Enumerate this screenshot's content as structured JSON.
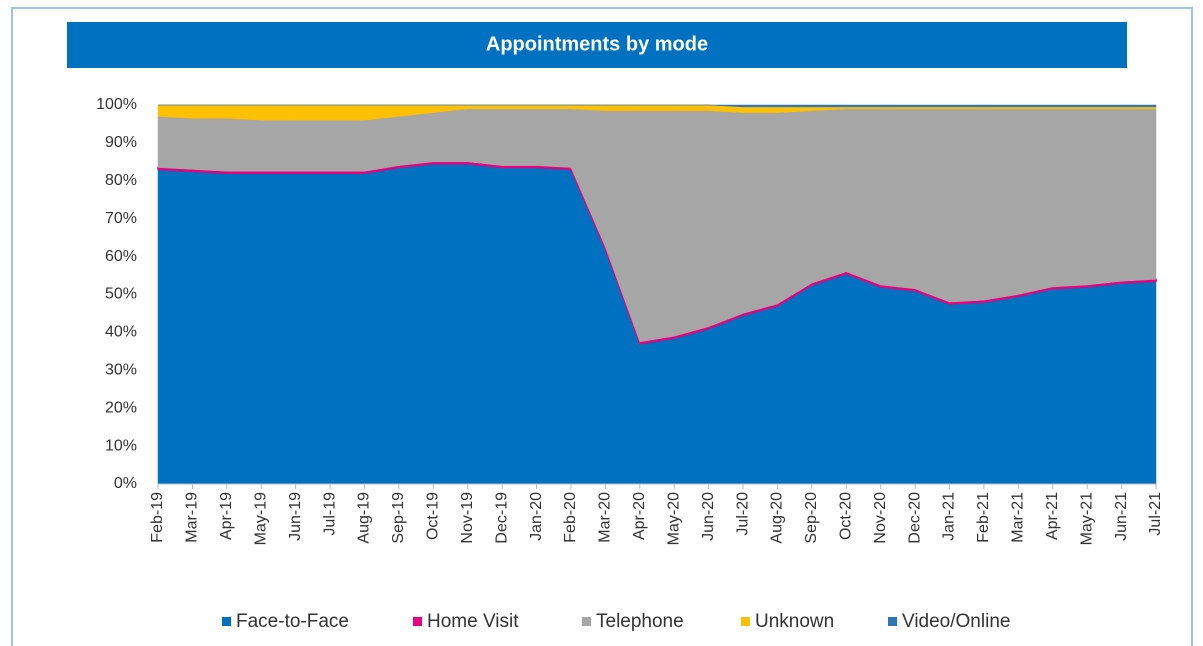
{
  "chart_data": {
    "type": "stacked_area",
    "title": "Appointments by mode",
    "categories": [
      "Feb-19",
      "Mar-19",
      "Apr-19",
      "May-19",
      "Jun-19",
      "Jul-19",
      "Aug-19",
      "Sep-19",
      "Oct-19",
      "Nov-19",
      "Dec-19",
      "Jan-20",
      "Feb-20",
      "Mar-20",
      "Apr-20",
      "May-20",
      "Jun-20",
      "Jul-20",
      "Aug-20",
      "Sep-20",
      "Oct-20",
      "Nov-20",
      "Dec-20",
      "Jan-21",
      "Feb-21",
      "Mar-21",
      "Apr-21",
      "May-21",
      "Jun-21",
      "Jul-21"
    ],
    "series": [
      {
        "name": "Face-to-Face",
        "color": "#0070c0",
        "values": [
          83,
          82.5,
          82,
          82,
          82,
          82,
          82,
          83.5,
          84.5,
          84.5,
          83.5,
          83.5,
          83,
          62,
          37,
          38.5,
          41,
          44.5,
          47,
          52.5,
          55.5,
          52,
          51,
          47.5,
          48,
          49.5,
          51.5,
          52,
          53,
          53.5
        ]
      },
      {
        "name": "Home Visit",
        "color": "#e6007e",
        "values": [
          0.5,
          0.5,
          0.5,
          0.5,
          0.5,
          0.5,
          0.5,
          0.5,
          0.5,
          0.5,
          0.5,
          0.5,
          0.5,
          0.5,
          0.5,
          0.5,
          0.5,
          0.5,
          0.5,
          0.5,
          0.5,
          0.5,
          0.5,
          0.5,
          0.5,
          0.5,
          0.5,
          0.5,
          0.5,
          0.5
        ]
      },
      {
        "name": "Telephone",
        "color": "#a6a6a6",
        "values": [
          13.5,
          13.5,
          14,
          13.5,
          13.5,
          13.5,
          13.5,
          13,
          13,
          14,
          15,
          15,
          15.5,
          36,
          61,
          59.5,
          57,
          53,
          50.5,
          45.5,
          43,
          46.5,
          47.5,
          51,
          50.5,
          49,
          47,
          46.5,
          45.5,
          45
        ]
      },
      {
        "name": "Unknown",
        "color": "#ffc000",
        "values": [
          3,
          3.5,
          3.5,
          4,
          4,
          4,
          4,
          3,
          2,
          1,
          1,
          1,
          1,
          1.5,
          1.5,
          1.5,
          1.5,
          1.5,
          1.5,
          1,
          0.5,
          0.5,
          0.5,
          0.5,
          0.5,
          0.5,
          0.5,
          0.5,
          0.5,
          0.5
        ]
      },
      {
        "name": "Video/Online",
        "color": "#2e75b6",
        "values": [
          0,
          0,
          0,
          0,
          0,
          0,
          0,
          0,
          0,
          0,
          0,
          0,
          0,
          0,
          0,
          0,
          0,
          0.5,
          0.5,
          0.5,
          0.5,
          0.5,
          0.5,
          0.5,
          0.5,
          0.5,
          0.5,
          0.5,
          0.5,
          0.5
        ]
      }
    ],
    "ylim": [
      0,
      100
    ],
    "yticks": [
      {
        "value": 0,
        "label": "0%"
      },
      {
        "value": 10,
        "label": "10%"
      },
      {
        "value": 20,
        "label": "20%"
      },
      {
        "value": 30,
        "label": "30%"
      },
      {
        "value": 40,
        "label": "40%"
      },
      {
        "value": 50,
        "label": "50%"
      },
      {
        "value": 60,
        "label": "60%"
      },
      {
        "value": 70,
        "label": "70%"
      },
      {
        "value": 80,
        "label": "80%"
      },
      {
        "value": 90,
        "label": "90%"
      },
      {
        "value": 100,
        "label": "100%"
      }
    ],
    "legend": "bottom"
  }
}
